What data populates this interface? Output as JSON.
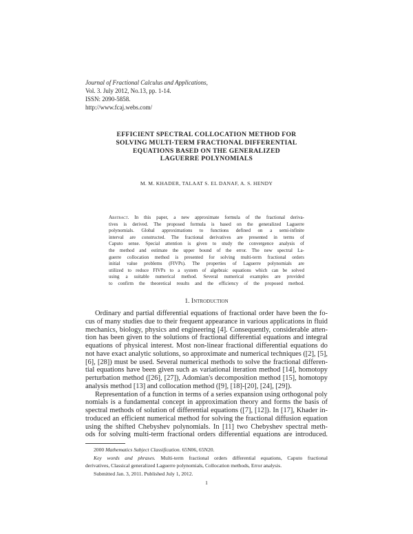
{
  "header": {
    "journal": "Journal of Fractional Calculus and Applications,",
    "volume": "Vol. 3. July 2012, No.13, pp. 1-14.",
    "issn": "ISSN: 2090-5858.",
    "url": "http://www.fcaj.webs.com/"
  },
  "title_lines": [
    "EFFICIENT SPECTRAL COLLOCATION METHOD FOR",
    "SOLVING MULTI-TERM FRACTIONAL DIFFERENTIAL",
    "EQUATIONS BASED ON THE GENERALIZED",
    "LAGUERRE POLYNOMIALS"
  ],
  "authors": "M. M. KHADER, TALAAT S. EL DANAF, A. S. HENDY",
  "abstract": {
    "label": "Abstract.",
    "lines": [
      "In this paper, a new approximate formula of the fractional deriva-",
      "tives is derived. The proposed formula is based on the generalized Laguerre",
      "polynomials. Global approximations to functions defined on a semi-infinite",
      "interval are constructed. The fractional derivatives are presented in terms of",
      "Caputo sense. Special attention is given to study the convergence analysis of",
      "the method and estimate the upper bound of the error. The new spectral La-",
      "guerre collocation method is presented for solving multi-term fractional orders",
      "initial value problems (FIVPs). The properties of Laguerre polynomials are",
      "utilized to reduce FIVPs to a system of algebraic equations which can be solved",
      "using a suitable numerical method. Several numerical examples are provided",
      "to confirm the theoretical results and the efficiency of the proposed method."
    ]
  },
  "section": {
    "number": "1.",
    "title": "Introduction"
  },
  "body_lines": [
    "Ordinary and partial differential equations of fractional order have been the fo-",
    "cus of many studies due to their frequent appearance in various applications in fluid",
    "mechanics, biology, physics and engineering [4]. Consequently, considerable atten-",
    "tion has been given to the solutions of fractional differential equations and integral",
    "equations of physical interest. Most non-linear fractional differential equations do",
    "not have exact analytic solutions, so approximate and numerical techniques ([2], [5],",
    "[6], [28]) must be used. Several numerical methods to solve the fractional differen-",
    "tial equations have been given such as variational iteration method [14], homotopy",
    "perturbation method ([26], [27]), Adomian's decomposition method [15], homotopy",
    "analysis method [13] and collocation method ([9], [18]-[20], [24], [29]).",
    "Representation of a function in terms of a series expansion using orthogonal poly-",
    "nomials is a fundamental concept in approximation theory and forms the basis of",
    "spectral methods of solution of differential equations ([7], [12]). In [17], Khader in-",
    "troduced an efficient numerical method for solving the fractional diffusion equation",
    "using the shifted Chebyshev polynomials. In [11] two Chebyshev spectral meth-",
    "ods for solving multi-term fractional orders differential equations are introduced."
  ],
  "footnotes": {
    "msc_year": "2000",
    "msc_label": "Mathematics Subject Classification.",
    "msc_value": "65N06, 65N20.",
    "keywords_label": "Key words and phrases.",
    "keywords_line1": "Multi-term fractional orders differential equations, Caputo fractional",
    "keywords_line2": "derivatives, Classical generalized Laguerre polynomials, Collocation methods, Error analysis.",
    "submitted": "Submitted Jan. 3, 2011. Published July 1, 2012."
  },
  "page_number": "1"
}
